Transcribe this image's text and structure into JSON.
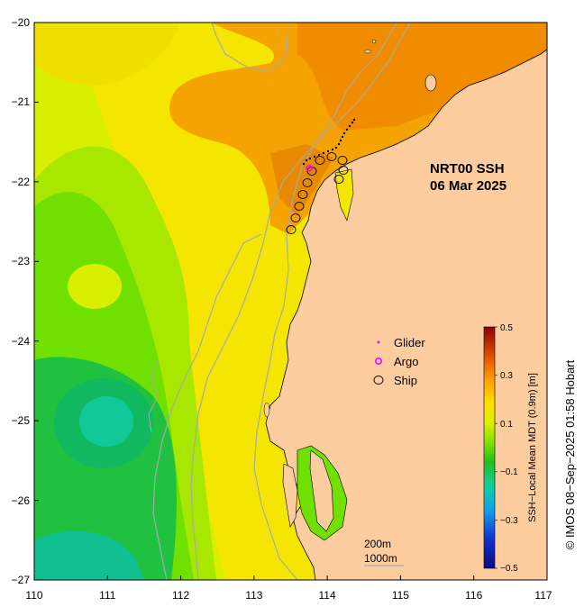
{
  "map": {
    "title_line1": "NRT00 SSH",
    "title_line2": "06 Mar 2025",
    "x_ticks": [
      "110",
      "111",
      "112",
      "113",
      "114",
      "115",
      "116",
      "117"
    ],
    "y_ticks": [
      "−20",
      "−21",
      "−22",
      "−23",
      "−24",
      "−25",
      "−26",
      "−27"
    ],
    "lon_range": [
      110,
      117
    ],
    "lat_range": [
      -27,
      -20
    ],
    "land_color": "#fdcda0",
    "contour_color": "#a8a8a8"
  },
  "legend": {
    "glider": "Glider",
    "argo": "Argo",
    "ship": "Ship",
    "glider_color": "#ff00ff",
    "argo_color": "#ff00ff",
    "ship_color": "#000000"
  },
  "colorbar": {
    "title": "SSH−Local Mean MDT (0.9m) [m]",
    "tick_labels": [
      "0.5",
      "0.3",
      "0.1",
      "−0.1",
      "−0.3",
      "−0.5"
    ],
    "range": [
      -0.5,
      0.5
    ]
  },
  "scale": {
    "label_200": "200m",
    "label_1000": "1000m"
  },
  "credit": "© IMOS 08−Sep−2025 01:58 Hobart"
}
